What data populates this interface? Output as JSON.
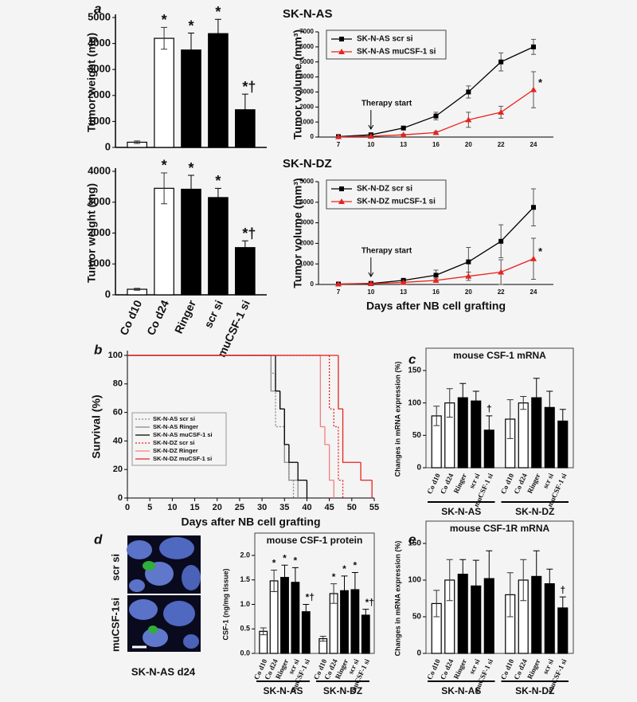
{
  "chart_data": [
    {
      "type": "bar",
      "panel": "a",
      "ylabel": "Tumor weight (mg)",
      "values": [
        200,
        4200,
        3750,
        4380,
        1450
      ],
      "errors": [
        50,
        420,
        650,
        550,
        600
      ],
      "bar_colors": [
        "#ffffff",
        "#ffffff",
        "#000000",
        "#000000",
        "#000000"
      ],
      "bar_marks": [
        null,
        "*",
        "*",
        "*",
        "*†"
      ],
      "ylim": [
        0,
        5000
      ],
      "yticks": [
        0,
        1000,
        2000,
        3000,
        4000,
        5000
      ]
    },
    {
      "type": "bar",
      "ylabel": "Tumor weight (mg)",
      "categories": [
        "Co d10",
        "Co d24",
        "Ringer",
        "scr si",
        "muCSF-1 si"
      ],
      "values": [
        180,
        3450,
        3420,
        3150,
        1530
      ],
      "errors": [
        30,
        500,
        450,
        300,
        220
      ],
      "bar_colors": [
        "#ffffff",
        "#ffffff",
        "#000000",
        "#000000",
        "#000000"
      ],
      "bar_marks": [
        null,
        "*",
        "*",
        "*",
        "*†"
      ],
      "ylim": [
        0,
        4000
      ],
      "yticks": [
        0,
        1000,
        2000,
        3000,
        4000
      ]
    },
    {
      "type": "line",
      "title": "SK-N-AS",
      "ylabel": "Tumor volume (mm³)",
      "annotation": "Therapy start",
      "categories": [
        "7",
        "10",
        "13",
        "16",
        "20",
        "22",
        "24"
      ],
      "ylim": [
        0,
        7000
      ],
      "yticks": [
        0,
        1000,
        2000,
        3000,
        4000,
        5000,
        6000,
        7000
      ],
      "series": [
        {
          "name": "SK-N-AS scr si",
          "color": "#000000",
          "marker": "square",
          "values": [
            30,
            150,
            600,
            1400,
            3000,
            5000,
            6000
          ],
          "errors": [
            20,
            50,
            80,
            250,
            400,
            600,
            500
          ]
        },
        {
          "name": "SK-N-AS muCSF-1 si",
          "color": "#e8221e",
          "marker": "triangle",
          "end_mark": "*",
          "values": [
            20,
            50,
            150,
            300,
            1150,
            1650,
            3150
          ],
          "errors": [
            10,
            20,
            40,
            80,
            500,
            400,
            1200
          ]
        }
      ]
    },
    {
      "type": "line",
      "title": "SK-N-DZ",
      "ylabel": "Tumor volume (mm³)",
      "annotation": "Therapy start",
      "xlabel": "Days after NB cell grafting",
      "categories": [
        "7",
        "10",
        "13",
        "16",
        "20",
        "22",
        "24"
      ],
      "ylim": [
        0,
        5000
      ],
      "yticks": [
        0,
        1000,
        2000,
        3000,
        4000,
        5000
      ],
      "series": [
        {
          "name": "SK-N-DZ scr si",
          "color": "#000000",
          "marker": "square",
          "values": [
            20,
            50,
            200,
            450,
            1100,
            2100,
            3750
          ],
          "errors": [
            10,
            20,
            60,
            250,
            700,
            800,
            900
          ]
        },
        {
          "name": "SK-N-DZ muCSF-1 si",
          "color": "#e8221e",
          "marker": "triangle",
          "end_mark": "*",
          "values": [
            20,
            40,
            100,
            200,
            400,
            600,
            1250
          ],
          "errors": [
            10,
            20,
            40,
            80,
            200,
            600,
            1000
          ]
        }
      ]
    },
    {
      "type": "survival",
      "panel": "b",
      "ylabel": "Survival (%)",
      "xlabel": "Days after NB cell grafting",
      "xlim": [
        0,
        55
      ],
      "xticks": [
        0,
        5,
        10,
        15,
        20,
        25,
        30,
        35,
        40,
        45,
        50,
        55
      ],
      "ylim": [
        0,
        100
      ],
      "yticks": [
        0,
        20,
        40,
        60,
        80,
        100
      ],
      "series": [
        {
          "name": "SK-N-AS scr si",
          "color": "#888888",
          "dash": "dotted",
          "x": [
            0,
            32,
            33,
            35,
            36,
            37
          ],
          "values": [
            100,
            87.5,
            50,
            37.5,
            12.5,
            0
          ]
        },
        {
          "name": "SK-N-AS Ringer",
          "color": "#888888",
          "dash": "solid",
          "x": [
            0,
            32,
            34,
            35,
            36,
            38
          ],
          "values": [
            100,
            75,
            62.5,
            25,
            12.5,
            0
          ]
        },
        {
          "name": "SK-N-AS muCSF-1 si",
          "color": "#000000",
          "dash": "solid",
          "x": [
            0,
            33,
            34,
            35,
            36,
            38,
            40
          ],
          "values": [
            100,
            75,
            62.5,
            37.5,
            25,
            12.5,
            0
          ]
        },
        {
          "name": "SK-N-DZ scr si",
          "color": "#e8221e",
          "dash": "dotted",
          "x": [
            0,
            45,
            46,
            47,
            48
          ],
          "values": [
            100,
            62.5,
            50,
            12.5,
            0
          ]
        },
        {
          "name": "SK-N-DZ Ringer",
          "color": "#f08080",
          "dash": "solid",
          "x": [
            0,
            43,
            44,
            45,
            46
          ],
          "values": [
            100,
            50,
            37.5,
            12.5,
            0
          ]
        },
        {
          "name": "SK-N-DZ muCSF-1 si",
          "color": "#e8221e",
          "dash": "solid",
          "x": [
            0,
            47,
            48,
            52,
            54.5
          ],
          "values": [
            100,
            62.5,
            25,
            12.5,
            0
          ]
        }
      ]
    },
    {
      "type": "bar",
      "panel": "c",
      "title": "mouse CSF-1 mRNA",
      "ylabel": "Changes in mRNA expression (%)",
      "groups": [
        "SK-N-AS",
        "SK-N-DZ"
      ],
      "categories": [
        "Co d10",
        "Co d24",
        "Ringer",
        "scr si",
        "muCSF-1 si",
        "Co d10",
        "Co d24",
        "Ringer",
        "scr si",
        "muCSF-1 si"
      ],
      "values": [
        80,
        100,
        108,
        103,
        58,
        75,
        100,
        108,
        93,
        72
      ],
      "errors": [
        15,
        22,
        22,
        15,
        22,
        30,
        10,
        30,
        25,
        18
      ],
      "bar_colors": [
        "#ffffff",
        "#ffffff",
        "#000000",
        "#000000",
        "#000000",
        "#ffffff",
        "#ffffff",
        "#000000",
        "#000000",
        "#000000"
      ],
      "bar_marks": [
        null,
        null,
        null,
        null,
        "†",
        null,
        null,
        null,
        null,
        null
      ],
      "ylim": [
        0,
        150
      ],
      "yticks": [
        0,
        50,
        100,
        150
      ]
    },
    {
      "type": "bar",
      "panel": "d",
      "title": "mouse CSF-1 protein",
      "ylabel": "CSF-1 (ng/mg tissue)",
      "groups": [
        "SK-N-AS",
        "SK-N-DZ"
      ],
      "categories": [
        "Co d10",
        "Co d24",
        "Ringer",
        "scr si",
        "muCSF-1 si",
        "Co d10",
        "Co d24",
        "Ringer",
        "scr si",
        "muCSF-1 si"
      ],
      "values": [
        0.45,
        1.48,
        1.55,
        1.45,
        0.85,
        0.3,
        1.22,
        1.28,
        1.3,
        0.78
      ],
      "errors": [
        0.07,
        0.22,
        0.25,
        0.3,
        0.15,
        0.05,
        0.2,
        0.3,
        0.35,
        0.12
      ],
      "bar_colors": [
        "#ffffff",
        "#ffffff",
        "#000000",
        "#000000",
        "#000000",
        "#ffffff",
        "#ffffff",
        "#000000",
        "#000000",
        "#000000"
      ],
      "bar_marks": [
        null,
        "*",
        "*",
        "*",
        "*†",
        null,
        "*",
        "*",
        "*",
        "*†"
      ],
      "ylim": [
        0,
        2
      ],
      "yticks": [
        {
          "value": 0,
          "label": "0.0"
        },
        {
          "value": 0.5,
          "label": "0.5"
        },
        {
          "value": 1,
          "label": "1.0"
        },
        {
          "value": 1.5,
          "label": "1.5"
        },
        {
          "value": 2,
          "label": "2.0"
        }
      ]
    },
    {
      "type": "bar",
      "panel": "e",
      "title": "mouse CSF-1R mRNA",
      "ylabel": "Changes in mRNA expression (%)",
      "groups": [
        "SK-N-AS",
        "SK-N-DZ"
      ],
      "categories": [
        "Co d10",
        "Co d24",
        "Ringer",
        "scr si",
        "muCSF-1 si",
        "Co d10",
        "Co d24",
        "Ringer",
        "scr si",
        "muCSF-1 si"
      ],
      "values": [
        68,
        100,
        108,
        92,
        102,
        80,
        100,
        105,
        95,
        62
      ],
      "errors": [
        18,
        28,
        20,
        35,
        38,
        30,
        28,
        35,
        20,
        15
      ],
      "bar_colors": [
        "#ffffff",
        "#ffffff",
        "#000000",
        "#000000",
        "#000000",
        "#ffffff",
        "#ffffff",
        "#000000",
        "#000000",
        "#000000"
      ],
      "bar_marks": [
        null,
        null,
        null,
        null,
        null,
        null,
        null,
        null,
        null,
        "†"
      ],
      "ylim": [
        0,
        150
      ],
      "yticks": [
        0,
        50,
        100,
        150
      ]
    }
  ],
  "micrograph": {
    "labels": [
      "scr si",
      "muCSF-1si"
    ],
    "caption": "SK-N-AS d24"
  }
}
